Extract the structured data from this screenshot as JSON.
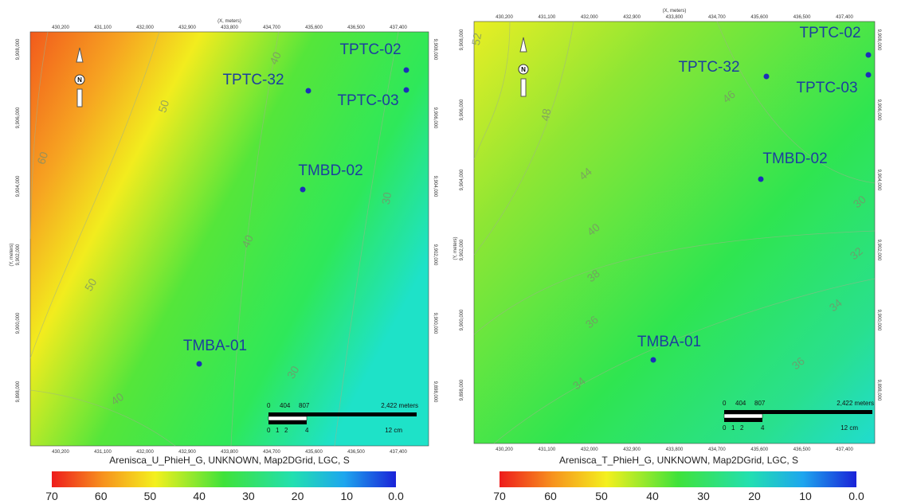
{
  "panels": [
    {
      "x_axis_label": "(X, meters)",
      "y_axis_label": "(Y, meters)",
      "x_ticks": [
        "430,200",
        "431,100",
        "432,000",
        "432,900",
        "433,800",
        "434,700",
        "435,600",
        "436,500",
        "437,400"
      ],
      "y_ticks": [
        "9,908,000",
        "9,906,000",
        "9,904,000",
        "9,902,000",
        "9,900,000",
        "9,898,000"
      ],
      "wells": [
        "TPTC-02",
        "TPTC-32",
        "TPTC-03",
        "TMBD-02",
        "TMBA-01"
      ],
      "contour_labels": [
        "60",
        "50",
        "40",
        "50",
        "40",
        "30",
        "30",
        "40"
      ],
      "scale_bar": {
        "top": [
          "0",
          "404",
          "807",
          "2,422 meters"
        ],
        "bottom": [
          "0",
          "1",
          "2",
          "4",
          "12 cm"
        ]
      },
      "grid_title": "Arenisca_U_PhieH_G, UNKNOWN, Map2DGrid, LGC, S",
      "colorbar_ticks": [
        "70",
        "60",
        "50",
        "40",
        "30",
        "20",
        "10",
        "0.0"
      ]
    },
    {
      "x_axis_label": "(X, meters)",
      "y_axis_label": "(Y, meters)",
      "x_ticks": [
        "430,200",
        "431,100",
        "432,000",
        "432,900",
        "433,800",
        "434,700",
        "435,600",
        "436,500",
        "437,400"
      ],
      "y_ticks": [
        "9,908,000",
        "9,906,000",
        "9,904,000",
        "9,902,000",
        "9,900,000",
        "9,898,000"
      ],
      "wells": [
        "TPTC-02",
        "TPTC-32",
        "TPTC-03",
        "TMBD-02",
        "TMBA-01"
      ],
      "contour_labels": [
        "52",
        "48",
        "46",
        "44",
        "40",
        "38",
        "36",
        "34",
        "30",
        "32",
        "34",
        "36"
      ],
      "scale_bar": {
        "top": [
          "0",
          "404",
          "807",
          "2,422 meters"
        ],
        "bottom": [
          "0",
          "1",
          "2",
          "4",
          "12 cm"
        ]
      },
      "grid_title": "Arenisca_T_PhieH_G, UNKNOWN, Map2DGrid, LGC, S",
      "colorbar_ticks": [
        "70",
        "60",
        "50",
        "40",
        "30",
        "20",
        "10",
        "0.0"
      ]
    }
  ]
}
